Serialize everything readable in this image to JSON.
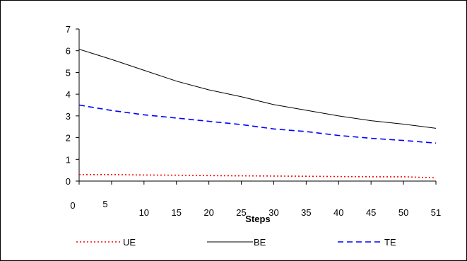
{
  "chart_data": {
    "type": "line",
    "title": "",
    "xlabel": "Steps",
    "ylabel": "",
    "x_tick_labels": [
      "0",
      "5",
      "10",
      "15",
      "20",
      "25",
      "30",
      "35",
      "40",
      "45",
      "50",
      "51"
    ],
    "y_tick_labels": [
      "0",
      "1",
      "2",
      "3",
      "4",
      "5",
      "6",
      "7"
    ],
    "ylim": [
      0,
      7
    ],
    "grid": false,
    "legend_position": "bottom",
    "series": [
      {
        "name": "UE",
        "color": "#ff0000",
        "line_style": "dotted",
        "values": [
          0.3,
          0.3,
          0.28,
          0.27,
          0.25,
          0.24,
          0.23,
          0.22,
          0.21,
          0.2,
          0.2,
          0.15
        ]
      },
      {
        "name": "BE",
        "color": "#000000",
        "line_style": "solid",
        "values": [
          6.07,
          5.6,
          5.1,
          4.6,
          4.2,
          3.88,
          3.52,
          3.26,
          3.0,
          2.78,
          2.62,
          2.43
        ]
      },
      {
        "name": "TE",
        "color": "#0000ff",
        "line_style": "dashed",
        "values": [
          3.5,
          3.25,
          3.05,
          2.9,
          2.75,
          2.6,
          2.4,
          2.28,
          2.1,
          1.97,
          1.87,
          1.75
        ]
      }
    ]
  }
}
